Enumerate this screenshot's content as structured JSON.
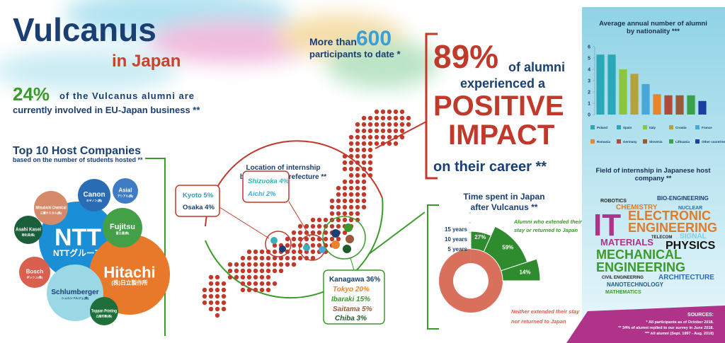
{
  "header": {
    "title": "Vulcanus",
    "subtitle": "in Japan"
  },
  "participants": {
    "prefix": "More than",
    "number": "600",
    "suffix": "participants to date *"
  },
  "business": {
    "percent": "24%",
    "lines": [
      "of the Vulcanus alumni are",
      "currently involved in EU-Japan business **"
    ]
  },
  "impact": {
    "percent": "89%",
    "lines": [
      "of alumni",
      "experienced a",
      "POSITIVE",
      "IMPACT",
      "on their career **"
    ]
  },
  "companies": {
    "title": "Top 10 Host Companies",
    "subtitle": "based on the number of students hosted **",
    "items": [
      {
        "name": "NTT",
        "local": "NTTグループ"
      },
      {
        "name": "Hitachi",
        "local": "(株)日立製作所"
      },
      {
        "name": "Fujitsu",
        "local": "富士通(株)"
      },
      {
        "name": "Canon",
        "local": "キヤノン(株)"
      },
      {
        "name": "Asial",
        "local": "アシアル(株)"
      },
      {
        "name": "Mitsubishi Chemical",
        "local": "三菱ケミカル(株)"
      },
      {
        "name": "Asahi Kasei",
        "local": "旭化成(株)"
      },
      {
        "name": "Bosch",
        "local": "ボッシュ(株)"
      },
      {
        "name": "Schlumberger",
        "local": "シュルンベルジェ(株)"
      },
      {
        "name": "Toppan Printing",
        "local": "凸版印刷(株)"
      }
    ]
  },
  "prefectures": {
    "title": [
      "Location of internship",
      "by Japanese prefecture **"
    ],
    "groups": [
      [
        "Kyoto 5%",
        "Osaka 4%"
      ],
      [
        "Shizuoka 4%",
        "Aichi 2%"
      ],
      [
        "Kanagawa 36%",
        "Tokyo 20%",
        "Ibaraki 15%",
        "Saitama 5%",
        "Chiba 3%"
      ]
    ]
  },
  "time_in_japan": {
    "title": [
      "Time spent in Japan",
      "after Vulcanus **"
    ],
    "axis": [
      "15 years",
      "10 years",
      "5 years"
    ],
    "segments": [
      "27%",
      "59%",
      "14%"
    ],
    "extended": [
      "Alumni who extended their",
      "stay or returned to Japan"
    ],
    "not_extended": [
      "Neither extended their stay",
      "nor returned to Japan"
    ]
  },
  "chart_data": {
    "type": "bar",
    "title": "Average annual number of alumni by nationality ***",
    "categories": [
      "Poland",
      "Spain",
      "Italy",
      "Croatia",
      "France",
      "Romania",
      "Germany",
      "Slovenia",
      "Lithuania",
      "Other countries"
    ],
    "values": [
      5.3,
      5.3,
      4.0,
      3.6,
      2.7,
      1.8,
      1.7,
      1.7,
      1.7,
      1.2
    ],
    "colors": [
      "#2aa8b8",
      "#2aa8b8",
      "#8cc63f",
      "#b5a23c",
      "#4aa8d8",
      "#e8852a",
      "#b04a3a",
      "#9a5a3a",
      "#3aa04a",
      "#1a3fa0"
    ],
    "ylim": [
      0,
      6
    ],
    "yticks": [
      0,
      1,
      2,
      3,
      4,
      5,
      6
    ]
  },
  "fields": {
    "title": "Field of internship in Japanese host company **",
    "words": [
      "ROBOTICS",
      "BIO-ENGINEERING",
      "CHEMISTRY",
      "NUCLEAR",
      "IT",
      "ELECTRONIC",
      "ENGINEERING",
      "TELECOM",
      "SIGNAL",
      "MATERIALS",
      "PHYSICS",
      "MECHANICAL",
      "ENGINEERING",
      "CIVIL ENGINEERING",
      "ARCHITECTURE",
      "NANOTECHNOLOGY",
      "MATHEMATICS"
    ]
  },
  "sources": {
    "title": "SOURCES:",
    "notes": [
      "* All participants as of October 2018.",
      "** 34% of alumni replied to our survey in June 2018.",
      "*** All alumni (Sept. 1997 - Aug. 2018)"
    ]
  }
}
